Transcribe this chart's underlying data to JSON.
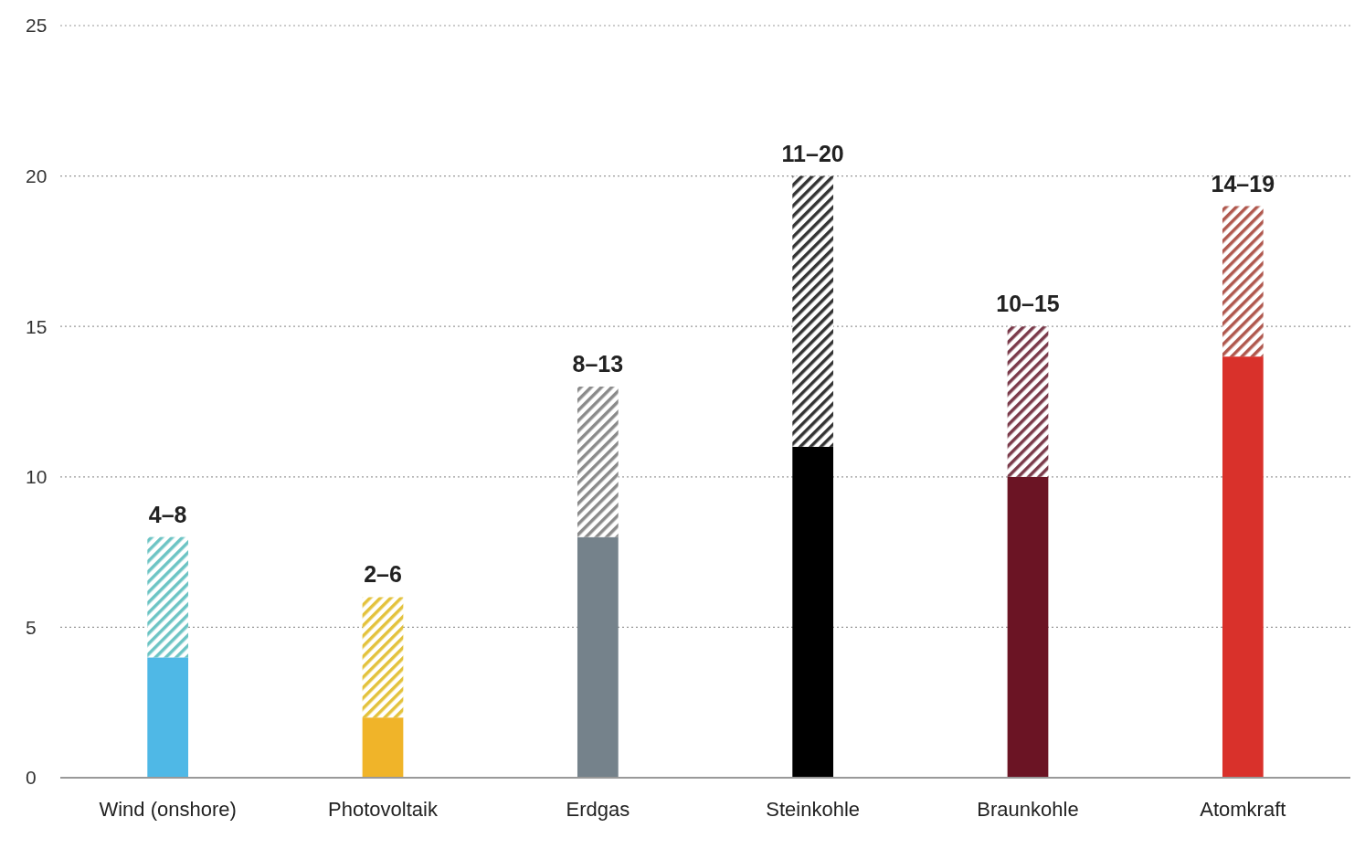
{
  "chart_data": {
    "type": "bar",
    "stacked": true,
    "categories": [
      "Wind (onshore)",
      "Photovoltaik",
      "Erdgas",
      "Steinkohle",
      "Braunkohle",
      "Atomkraft"
    ],
    "series": [
      {
        "colors": [
          "#4fb8e6",
          "#f0b429",
          "#75828b",
          "#000000",
          "#6b1424",
          "#d9312b"
        ],
        "values": [
          4,
          2,
          8,
          11,
          10,
          14
        ]
      },
      {
        "colors": [
          "#6cc4c4",
          "#e3c23c",
          "#8a8a8a",
          "#333333",
          "#7a3a4a",
          "#b0584e"
        ],
        "values": [
          4,
          4,
          5,
          9,
          5,
          5
        ]
      }
    ],
    "totals": [
      "4–8",
      "2–6",
      "8–13",
      "11–20",
      "10–15",
      "14–19"
    ],
    "ylim": [
      0,
      25
    ],
    "yticks": [
      0,
      5,
      10,
      15,
      20,
      25
    ],
    "grid": "y"
  }
}
